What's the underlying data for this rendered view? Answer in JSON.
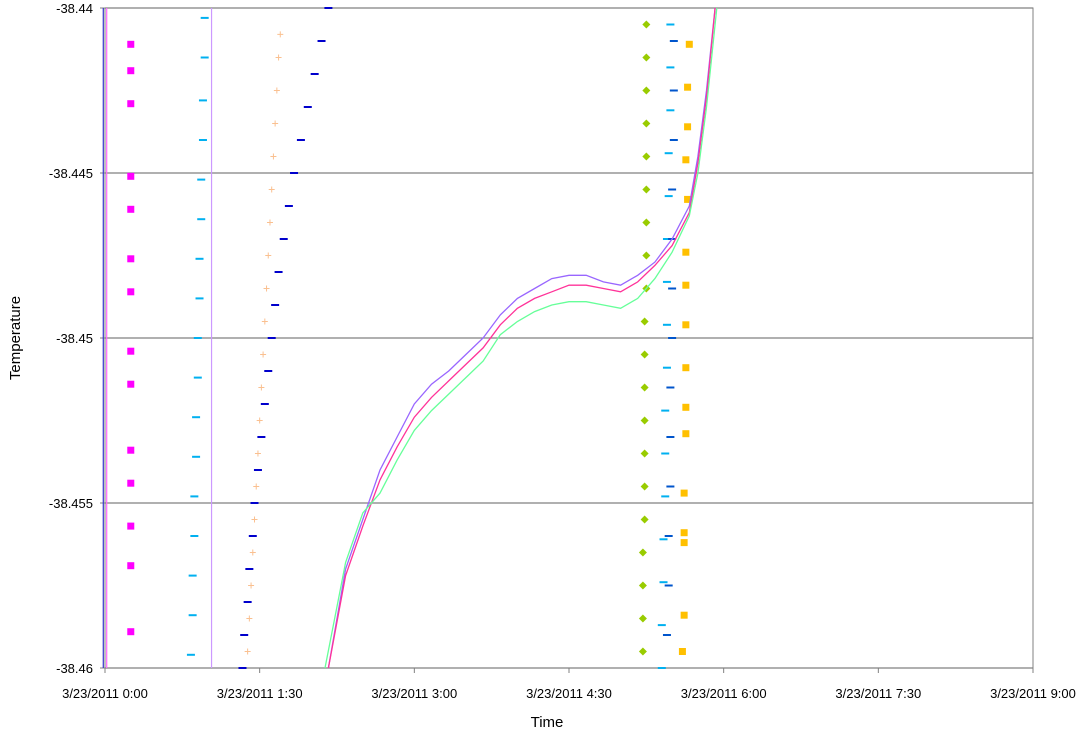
{
  "chart_data": {
    "type": "scatter",
    "title": "",
    "xlabel": "Time",
    "ylabel": "Temperature",
    "x_axis": {
      "unit": "minutes after 3/23/2011 0:00",
      "min": 0,
      "max": 540,
      "ticks": [
        {
          "value": 0,
          "label": "3/23/2011 0:00"
        },
        {
          "value": 90,
          "label": "3/23/2011 1:30"
        },
        {
          "value": 180,
          "label": "3/23/2011 3:00"
        },
        {
          "value": 270,
          "label": "3/23/2011 4:30"
        },
        {
          "value": 360,
          "label": "3/23/2011 6:00"
        },
        {
          "value": 450,
          "label": "3/23/2011 7:30"
        },
        {
          "value": 540,
          "label": "3/23/2011 9:00"
        }
      ]
    },
    "y_axis": {
      "min": -38.46,
      "max": -38.44,
      "ticks": [
        {
          "value": -38.44,
          "label": "-38.44"
        },
        {
          "value": -38.445,
          "label": "-38.445"
        },
        {
          "value": -38.45,
          "label": "-38.45"
        },
        {
          "value": -38.455,
          "label": "-38.455"
        },
        {
          "value": -38.46,
          "label": "-38.46"
        }
      ]
    },
    "grid": true,
    "legend": "none",
    "series": [
      {
        "color": "#ff00ff",
        "marker": "square",
        "points": [
          [
            15,
            -38.4411
          ],
          [
            15,
            -38.4419
          ],
          [
            15,
            -38.4429
          ],
          [
            15,
            -38.4451
          ],
          [
            15,
            -38.4461
          ],
          [
            15,
            -38.4476
          ],
          [
            15,
            -38.4486
          ],
          [
            15,
            -38.4504
          ],
          [
            15,
            -38.4514
          ],
          [
            15,
            -38.4534
          ],
          [
            15,
            -38.4544
          ],
          [
            15,
            -38.4557
          ],
          [
            15,
            -38.4569
          ],
          [
            15,
            -38.4589
          ]
        ]
      },
      {
        "color": "#00b0f0",
        "marker": "dash",
        "points": [
          [
            58,
            -38.4403
          ],
          [
            58,
            -38.4415
          ],
          [
            57,
            -38.4428
          ],
          [
            57,
            -38.444
          ],
          [
            56,
            -38.4452
          ],
          [
            56,
            -38.4464
          ],
          [
            55,
            -38.4476
          ],
          [
            55,
            -38.4488
          ],
          [
            54,
            -38.45
          ],
          [
            54,
            -38.4512
          ],
          [
            53,
            -38.4524
          ],
          [
            53,
            -38.4536
          ],
          [
            52,
            -38.4548
          ],
          [
            52,
            -38.456
          ],
          [
            51,
            -38.4572
          ],
          [
            51,
            -38.4584
          ],
          [
            50,
            -38.4596
          ]
        ]
      },
      {
        "color": "#fac090",
        "marker": "plus",
        "points": [
          [
            102,
            -38.4408
          ],
          [
            101,
            -38.4415
          ],
          [
            100,
            -38.4425
          ],
          [
            99,
            -38.4435
          ],
          [
            98,
            -38.4445
          ],
          [
            97,
            -38.4455
          ],
          [
            96,
            -38.4465
          ],
          [
            95,
            -38.4475
          ],
          [
            94,
            -38.4485
          ],
          [
            93,
            -38.4495
          ],
          [
            92,
            -38.4505
          ],
          [
            91,
            -38.4515
          ],
          [
            90,
            -38.4525
          ],
          [
            89,
            -38.4535
          ],
          [
            88,
            -38.4545
          ],
          [
            87,
            -38.4555
          ],
          [
            86,
            -38.4565
          ],
          [
            85,
            -38.4575
          ],
          [
            84,
            -38.4585
          ],
          [
            83,
            -38.4595
          ]
        ]
      },
      {
        "color": "#0000cc",
        "marker": "dash",
        "points": [
          [
            130,
            -38.44
          ],
          [
            126,
            -38.441
          ],
          [
            122,
            -38.442
          ],
          [
            118,
            -38.443
          ],
          [
            114,
            -38.444
          ],
          [
            110,
            -38.445
          ],
          [
            107,
            -38.446
          ],
          [
            104,
            -38.447
          ],
          [
            101,
            -38.448
          ],
          [
            99,
            -38.449
          ],
          [
            97,
            -38.45
          ],
          [
            95,
            -38.451
          ],
          [
            93,
            -38.452
          ],
          [
            91,
            -38.453
          ],
          [
            89,
            -38.454
          ],
          [
            87,
            -38.455
          ],
          [
            86,
            -38.456
          ],
          [
            84,
            -38.457
          ],
          [
            83,
            -38.458
          ],
          [
            81,
            -38.459
          ],
          [
            80,
            -38.46
          ]
        ]
      },
      {
        "color": "#99cc00",
        "marker": "diamond",
        "points": [
          [
            315,
            -38.4405
          ],
          [
            315,
            -38.4415
          ],
          [
            315,
            -38.4425
          ],
          [
            315,
            -38.4435
          ],
          [
            315,
            -38.4445
          ],
          [
            315,
            -38.4455
          ],
          [
            315,
            -38.4465
          ],
          [
            315,
            -38.4475
          ],
          [
            315,
            -38.4485
          ],
          [
            314,
            -38.4495
          ],
          [
            314,
            -38.4505
          ],
          [
            314,
            -38.4515
          ],
          [
            314,
            -38.4525
          ],
          [
            314,
            -38.4535
          ],
          [
            314,
            -38.4545
          ],
          [
            314,
            -38.4555
          ],
          [
            313,
            -38.4565
          ],
          [
            313,
            -38.4575
          ],
          [
            313,
            -38.4585
          ],
          [
            313,
            -38.4595
          ]
        ]
      },
      {
        "color": "#00b0f0",
        "marker": "dash",
        "points": [
          [
            329,
            -38.4405
          ],
          [
            329,
            -38.4418
          ],
          [
            329,
            -38.4431
          ],
          [
            328,
            -38.4444
          ],
          [
            328,
            -38.4457
          ],
          [
            327,
            -38.447
          ],
          [
            327,
            -38.4483
          ],
          [
            327,
            -38.4496
          ],
          [
            327,
            -38.4509
          ],
          [
            326,
            -38.4522
          ],
          [
            326,
            -38.4535
          ],
          [
            326,
            -38.4548
          ],
          [
            325,
            -38.4561
          ],
          [
            325,
            -38.4574
          ],
          [
            324,
            -38.4587
          ],
          [
            324,
            -38.46
          ]
        ]
      },
      {
        "color": "#0055cc",
        "marker": "dash",
        "points": [
          [
            331,
            -38.441
          ],
          [
            331,
            -38.4425
          ],
          [
            331,
            -38.444
          ],
          [
            330,
            -38.4455
          ],
          [
            330,
            -38.447
          ],
          [
            330,
            -38.4485
          ],
          [
            330,
            -38.45
          ],
          [
            329,
            -38.4515
          ],
          [
            329,
            -38.453
          ],
          [
            329,
            -38.4545
          ],
          [
            328,
            -38.456
          ],
          [
            328,
            -38.4575
          ],
          [
            327,
            -38.459
          ]
        ]
      },
      {
        "color": "#ffc000",
        "marker": "square",
        "points": [
          [
            340,
            -38.4411
          ],
          [
            339,
            -38.4424
          ],
          [
            339,
            -38.4436
          ],
          [
            338,
            -38.4446
          ],
          [
            339,
            -38.4458
          ],
          [
            338,
            -38.4474
          ],
          [
            338,
            -38.4484
          ],
          [
            338,
            -38.4496
          ],
          [
            338,
            -38.4509
          ],
          [
            338,
            -38.4521
          ],
          [
            338,
            -38.4529
          ],
          [
            337,
            -38.4547
          ],
          [
            337,
            -38.4559
          ],
          [
            337,
            -38.4562
          ],
          [
            337,
            -38.4584
          ],
          [
            336,
            -38.4595
          ]
        ]
      },
      {
        "color": "#9966ff",
        "marker": "line",
        "points": [
          [
            130,
            -38.46
          ],
          [
            140,
            -38.457
          ],
          [
            150,
            -38.4555
          ],
          [
            160,
            -38.454
          ],
          [
            170,
            -38.453
          ],
          [
            180,
            -38.452
          ],
          [
            190,
            -38.4514
          ],
          [
            200,
            -38.451
          ],
          [
            210,
            -38.4505
          ],
          [
            220,
            -38.45
          ],
          [
            230,
            -38.4493
          ],
          [
            240,
            -38.4488
          ],
          [
            250,
            -38.4485
          ],
          [
            260,
            -38.4482
          ],
          [
            270,
            -38.4481
          ],
          [
            280,
            -38.4481
          ],
          [
            290,
            -38.4483
          ],
          [
            300,
            -38.4484
          ],
          [
            310,
            -38.4481
          ],
          [
            320,
            -38.4477
          ],
          [
            330,
            -38.447
          ],
          [
            340,
            -38.446
          ],
          [
            345,
            -38.4445
          ],
          [
            350,
            -38.4425
          ],
          [
            355,
            -38.44
          ]
        ]
      },
      {
        "color": "#ff3399",
        "marker": "line",
        "points": [
          [
            130,
            -38.46
          ],
          [
            140,
            -38.4572
          ],
          [
            150,
            -38.4557
          ],
          [
            160,
            -38.4543
          ],
          [
            170,
            -38.4533
          ],
          [
            180,
            -38.4524
          ],
          [
            190,
            -38.4518
          ],
          [
            200,
            -38.4513
          ],
          [
            210,
            -38.4508
          ],
          [
            220,
            -38.4503
          ],
          [
            230,
            -38.4496
          ],
          [
            240,
            -38.4491
          ],
          [
            250,
            -38.4488
          ],
          [
            260,
            -38.4486
          ],
          [
            270,
            -38.4484
          ],
          [
            280,
            -38.4484
          ],
          [
            290,
            -38.4485
          ],
          [
            300,
            -38.4486
          ],
          [
            310,
            -38.4483
          ],
          [
            320,
            -38.4478
          ],
          [
            330,
            -38.4472
          ],
          [
            340,
            -38.4462
          ],
          [
            345,
            -38.4447
          ],
          [
            350,
            -38.4427
          ],
          [
            355,
            -38.44
          ]
        ]
      },
      {
        "color": "#66ff99",
        "marker": "line",
        "points": [
          [
            128,
            -38.46
          ],
          [
            140,
            -38.4568
          ],
          [
            150,
            -38.4553
          ],
          [
            160,
            -38.4547
          ],
          [
            170,
            -38.4537
          ],
          [
            180,
            -38.4528
          ],
          [
            190,
            -38.4522
          ],
          [
            200,
            -38.4517
          ],
          [
            210,
            -38.4512
          ],
          [
            220,
            -38.4507
          ],
          [
            230,
            -38.4499
          ],
          [
            240,
            -38.4495
          ],
          [
            250,
            -38.4492
          ],
          [
            260,
            -38.449
          ],
          [
            270,
            -38.4489
          ],
          [
            280,
            -38.4489
          ],
          [
            290,
            -38.449
          ],
          [
            300,
            -38.4491
          ],
          [
            310,
            -38.4488
          ],
          [
            320,
            -38.4482
          ],
          [
            330,
            -38.4474
          ],
          [
            340,
            -38.4463
          ],
          [
            345,
            -38.445
          ],
          [
            350,
            -38.443
          ],
          [
            356,
            -38.44
          ]
        ]
      },
      {
        "color": "#3333cc",
        "marker": "vline",
        "points": [
          [
            -1,
            -38.46
          ],
          [
            -1,
            -38.44
          ]
        ]
      },
      {
        "color": "#ff66ff",
        "marker": "vline",
        "points": [
          [
            1,
            -38.46
          ],
          [
            1,
            -38.44
          ]
        ]
      },
      {
        "color": "#cc99ff",
        "marker": "vline",
        "points": [
          [
            62,
            -38.46
          ],
          [
            62,
            -38.44
          ]
        ]
      }
    ]
  }
}
